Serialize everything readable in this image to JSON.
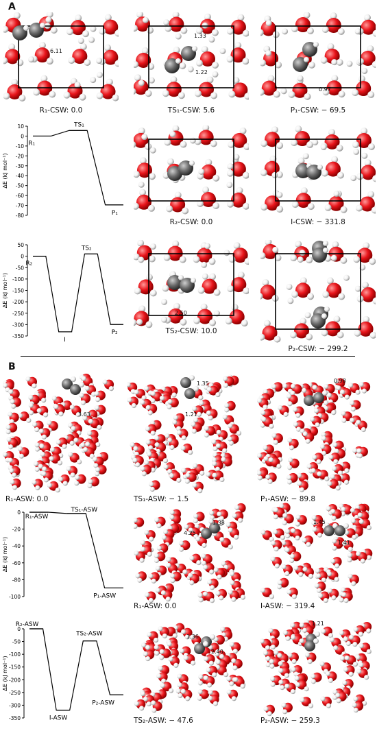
{
  "section_a": "A",
  "section_b": "B",
  "colors": {
    "oxygen": "#e8141a",
    "hydrogen": "#f2f2f2",
    "carbon": "#6b6b6b",
    "frame": "#000000"
  },
  "panels": {
    "R1_CSW": {
      "caption": "R₁-CSW: 0.0",
      "annot": [
        "6.11"
      ]
    },
    "TS1_CSW": {
      "caption": "TS₁-CSW: 5.6",
      "annot": [
        "1.33",
        "1.22"
      ]
    },
    "P1_CSW": {
      "caption": "P₁-CSW: − 69.5",
      "annot": [
        "0.97"
      ]
    },
    "R2_CSW": {
      "caption": "R₂-CSW: 0.0",
      "annot": []
    },
    "I_CSW": {
      "caption": "I-CSW: − 331.8",
      "annot": []
    },
    "TS2_CSW": {
      "caption": "TS₂-CSW: 10.0",
      "annot": [
        "2.50"
      ]
    },
    "P2_CSW": {
      "caption": "P₂-CSW: − 299.2",
      "annot": []
    },
    "R1_ASW": {
      "caption": "R₁-ASW: 0.0",
      "annot": [
        "3.63"
      ]
    },
    "TS1_ASW": {
      "caption": "TS₁-ASW: − 1.5",
      "annot": [
        "1.35",
        "1.21"
      ]
    },
    "P1_ASW": {
      "caption": "P₁-ASW: − 89.8",
      "annot": [
        "0.98"
      ]
    },
    "R1b_ASW": {
      "caption": "R₁-ASW: 0.0",
      "annot": [
        "4.25",
        "1.38"
      ]
    },
    "I_ASW": {
      "caption": "I-ASW: − 319.4",
      "annot": [
        "1.45",
        "1.41"
      ]
    },
    "TS2_ASW": {
      "caption": "TS₂-ASW: − 47.6",
      "annot": [
        "1.36",
        "2.40"
      ]
    },
    "P2_ASW": {
      "caption": "P₂-ASW: − 259.3",
      "annot": [
        "1.21"
      ]
    }
  },
  "chart_data": [
    {
      "type": "line",
      "ylabel": "ΔE (kJ mol⁻¹)",
      "ylim": [
        -80,
        10
      ],
      "yticks": [
        10,
        0,
        -10,
        -20,
        -30,
        -40,
        -50,
        -60,
        -70,
        -80
      ],
      "points": [
        {
          "label": "R₁",
          "value": 0.0
        },
        {
          "label": "TS₁",
          "value": 5.6
        },
        {
          "label": "P₁",
          "value": -69.5
        }
      ]
    },
    {
      "type": "line",
      "ylabel": "ΔE (kJ mol⁻¹)",
      "ylim": [
        -350,
        50
      ],
      "yticks": [
        50,
        0,
        -50,
        -100,
        -150,
        -200,
        -250,
        -300,
        -350
      ],
      "points": [
        {
          "label": "R₂",
          "value": 0.0
        },
        {
          "label": "I",
          "value": -331.8
        },
        {
          "label": "TS₂",
          "value": 10.0
        },
        {
          "label": "P₂",
          "value": -299.2
        }
      ]
    },
    {
      "type": "line",
      "ylabel": "ΔE (kJ mol⁻¹)",
      "ylim": [
        -100,
        0
      ],
      "yticks": [
        0,
        -20,
        -40,
        -60,
        -80,
        -100
      ],
      "points": [
        {
          "label": "R₁-ASW",
          "value": 0.0
        },
        {
          "label": "TS₁-ASW",
          "value": -1.5
        },
        {
          "label": "P₁-ASW",
          "value": -89.8
        }
      ]
    },
    {
      "type": "line",
      "ylabel": "ΔE (kJ mol⁻¹)",
      "ylim": [
        -350,
        0
      ],
      "yticks": [
        0,
        -50,
        -100,
        -150,
        -200,
        -250,
        -300,
        -350
      ],
      "points": [
        {
          "label": "R₂-ASW",
          "value": 0.0
        },
        {
          "label": "I-ASW",
          "value": -319.4
        },
        {
          "label": "TS₂-ASW",
          "value": -47.6
        },
        {
          "label": "P₂-ASW",
          "value": -259.3
        }
      ]
    }
  ]
}
